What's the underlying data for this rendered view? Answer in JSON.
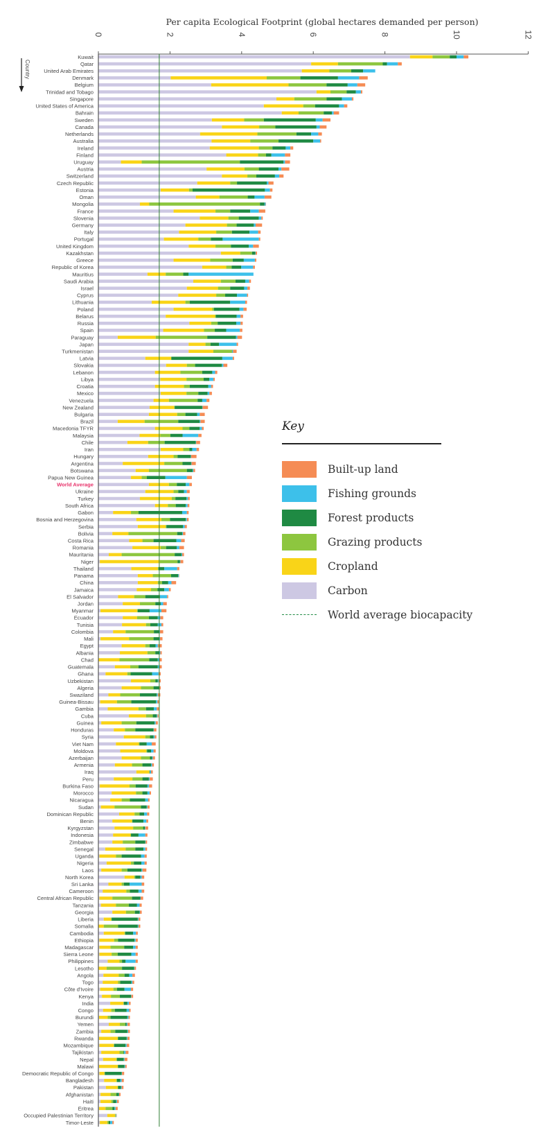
{
  "chart_data": {
    "type": "bar",
    "orientation": "horizontal",
    "stacked": true,
    "title": "Per capita Ecological Footprint (global hectares demanded per person)",
    "xlabel": "",
    "ylabel": "Country",
    "xlim": [
      0,
      12
    ],
    "xticks": [
      0,
      2,
      4,
      6,
      8,
      10,
      12
    ],
    "grid": false,
    "legend_title": "Key",
    "legend_placement": "right-middle",
    "highlight_category": "World Average",
    "highlight_color": "#e8336b",
    "reference_line": {
      "name": "World average biocapacity",
      "value": 1.7,
      "color": "#2e7d32",
      "style": "dashed"
    },
    "categories": [
      "Kuwait",
      "Qatar",
      "United Arab Emirates",
      "Denmark",
      "Belgium",
      "Trinidad and Tobago",
      "Singapore",
      "United States of America",
      "Bahrain",
      "Sweden",
      "Canada",
      "Netherlands",
      "Australia",
      "Ireland",
      "Finland",
      "Uruguay",
      "Austria",
      "Switzerland",
      "Czech Republic",
      "Estonia",
      "Oman",
      "Mongolia",
      "France",
      "Slovenia",
      "Germany",
      "Italy",
      "Portugal",
      "United Kingdom",
      "Kazakhstan",
      "Greece",
      "Republic of Korea",
      "Mauritius",
      "Saudi Arabia",
      "Israel",
      "Cyprus",
      "Lithuania",
      "Poland",
      "Belarus",
      "Russia",
      "Spain",
      "Paraguay",
      "Japan",
      "Turkmenistan",
      "Latvia",
      "Slovakia",
      "Lebanon",
      "Libya",
      "Croatia",
      "Mexico",
      "Venezuela",
      "New Zealand",
      "Bulgaria",
      "Brazil",
      "Macedonia TFYR",
      "Malaysia",
      "Chile",
      "Iran",
      "Hungary",
      "Argentina",
      "Botswana",
      "Papua New Guinea",
      "World Average",
      "Ukraine",
      "Turkey",
      "South Africa",
      "Gabon",
      "Bosnia and Herzegovina",
      "Serbia",
      "Bolivia",
      "Costa Rica",
      "Romania",
      "Mauritania",
      "Niger",
      "Thailand",
      "Panama",
      "China",
      "Jamaica",
      "El Salvador",
      "Jordan",
      "Myanmar",
      "Ecuador",
      "Tunisia",
      "Colombia",
      "Mali",
      "Egypt",
      "Albania",
      "Chad",
      "Guatemala",
      "Ghana",
      "Uzbekistan",
      "Algeria",
      "Swaziland",
      "Guinea-Bissau",
      "Gambia",
      "Cuba",
      "Guinea",
      "Honduras",
      "Syria",
      "Viet Nam",
      "Moldova",
      "Azerbaijan",
      "Armenia",
      "Iraq",
      "Peru",
      "Burkina Faso",
      "Morocco",
      "Nicaragua",
      "Sudan",
      "Dominican Republic",
      "Benin",
      "Kyrgyzstan",
      "Indonesia",
      "Zimbabwe",
      "Senegal",
      "Uganda",
      "Nigeria",
      "Laos",
      "North Korea",
      "Sri Lanka",
      "Cameroon",
      "Central African Republic",
      "Tanzania",
      "Georgia",
      "Liberia",
      "Somalia",
      "Cambodia",
      "Ethiopia",
      "Madagascar",
      "Sierra Leone",
      "Philippines",
      "Lesotho",
      "Angola",
      "Togo",
      "Côte d'Ivoire",
      "Kenya",
      "India",
      "Congo",
      "Burundi",
      "Yemen",
      "Zambia",
      "Rwanda",
      "Mozambique",
      "Tajikistan",
      "Nepal",
      "Malawi",
      "Democratic Republic of Congo",
      "Bangladesh",
      "Pakistan",
      "Afghanistan",
      "Haiti",
      "Eritrea",
      "Occupied Palestinian Territory",
      "Timor-Leste"
    ],
    "series": [
      {
        "name": "Carbon",
        "color": "#cdc8e3",
        "values": [
          8.7,
          5.94,
          5.68,
          2.02,
          3.15,
          6.09,
          4.97,
          4.62,
          5.12,
          3.17,
          3.45,
          2.84,
          3.16,
          3.11,
          3.57,
          0.63,
          3.02,
          3.45,
          2.76,
          1.74,
          2.72,
          1.16,
          2.1,
          2.83,
          2.43,
          2.25,
          1.83,
          2.52,
          3.42,
          2.1,
          2.9,
          1.37,
          2.65,
          2.47,
          2.23,
          1.49,
          2.1,
          1.88,
          2.54,
          1.81,
          0.54,
          2.52,
          2.52,
          1.31,
          1.89,
          1.58,
          1.73,
          1.58,
          1.74,
          1.54,
          1.43,
          1.41,
          0.54,
          1.58,
          1.15,
          0.81,
          1.74,
          1.39,
          0.68,
          1.04,
          0.91,
          1.41,
          1.31,
          1.16,
          1.58,
          0.41,
          1.06,
          1.1,
          0.39,
          0.86,
          0.95,
          0.29,
          0.04,
          0.92,
          1.1,
          1.1,
          1.07,
          0.55,
          0.68,
          0.06,
          0.68,
          0.66,
          0.41,
          0.06,
          0.65,
          0.6,
          0.01,
          0.46,
          0.2,
          0.91,
          0.65,
          0.28,
          0.05,
          0.26,
          0.85,
          0.08,
          0.43,
          0.71,
          0.49,
          0.61,
          0.65,
          0.46,
          1.06,
          0.43,
          0.04,
          0.37,
          0.33,
          0.07,
          0.58,
          0.39,
          0.45,
          0.41,
          0.39,
          0.19,
          0.03,
          0.23,
          0.08,
          0.73,
          0.28,
          0.12,
          0.03,
          0.07,
          0.39,
          0.15,
          0.01,
          0.15,
          0.03,
          0.03,
          0.03,
          0.26,
          0.01,
          0.14,
          0.12,
          0.05,
          0.1,
          0.33,
          0.13,
          0.02,
          0.29,
          0.08,
          0.02,
          0.03,
          0.08,
          0.13,
          0.02,
          0.03,
          0.16,
          0.21,
          0.06,
          0.06,
          0.02,
          0.25,
          0.04
        ]
      },
      {
        "name": "Cropland",
        "color": "#f9d418",
        "values": [
          0.63,
          0.75,
          0.77,
          2.68,
          2.16,
          0.39,
          0.5,
          1.1,
          0.47,
          0.9,
          1.04,
          1.6,
          1.08,
          1.37,
          0.89,
          0.58,
          1.06,
          0.71,
          0.92,
          0.79,
          0.66,
          0.26,
          1.17,
          0.8,
          1.16,
          1.04,
          0.96,
          0.75,
          0.54,
          1.02,
          0.67,
          0.51,
          0.77,
          0.87,
          1.06,
          0.94,
          1.08,
          1.38,
          0.61,
          1.14,
          1.06,
          0.47,
          0.69,
          0.72,
          0.58,
          0.71,
          0.73,
          0.81,
          0.72,
          0.43,
          0.69,
          0.79,
          0.75,
          0.77,
          0.58,
          0.58,
          0.63,
          0.71,
          1.16,
          0.37,
          0.3,
          0.56,
          0.79,
          0.89,
          0.36,
          0.5,
          0.7,
          0.78,
          0.45,
          0.37,
          0.79,
          0.36,
          1.68,
          0.74,
          0.42,
          0.56,
          0.4,
          0.45,
          0.48,
          1.02,
          0.4,
          0.67,
          0.35,
          0.8,
          0.66,
          0.77,
          0.58,
          0.43,
          0.61,
          0.54,
          0.54,
          0.33,
          0.47,
          0.86,
          0.48,
          0.57,
          0.31,
          0.6,
          0.64,
          0.73,
          0.54,
          0.48,
          0.36,
          0.52,
          0.83,
          0.68,
          0.32,
          0.38,
          0.43,
          0.55,
          0.52,
          0.49,
          0.29,
          0.57,
          0.46,
          0.68,
          0.57,
          0.27,
          0.37,
          0.66,
          0.36,
          0.42,
          0.38,
          0.21,
          0.14,
          0.58,
          0.41,
          0.31,
          0.34,
          0.33,
          0.22,
          0.43,
          0.43,
          0.37,
          0.25,
          0.37,
          0.23,
          0.24,
          0.31,
          0.26,
          0.52,
          0.4,
          0.51,
          0.37,
          0.52,
          0.14,
          0.34,
          0.33,
          0.28,
          0.3,
          0.18,
          0.22,
          0.21
        ]
      },
      {
        "name": "Grazing products",
        "color": "#8dc63f",
        "values": [
          0.48,
          1.25,
          0.61,
          0.94,
          1.06,
          0.45,
          0.9,
          0.33,
          0.7,
          0.55,
          0.45,
          1.09,
          0.79,
          0.38,
          0.22,
          2.74,
          0.4,
          0.25,
          0.19,
          0.1,
          0.79,
          3.09,
          0.41,
          0.29,
          0.27,
          0.44,
          0.35,
          0.43,
          0.33,
          0.63,
          0.15,
          0.49,
          0.41,
          0.34,
          0.25,
          0.12,
          0.05,
          0.02,
          0.18,
          0.3,
          1.44,
          0.14,
          0.52,
          0.01,
          0.23,
          0.61,
          0.48,
          0.16,
          0.33,
          0.8,
          0.01,
          0.23,
          0.94,
          0.19,
          0.28,
          0.46,
          0.17,
          0.11,
          0.51,
          1.06,
          0.14,
          0.22,
          0.13,
          0.1,
          0.22,
          0.21,
          0.24,
          0.02,
          1.36,
          0.31,
          0.15,
          1.48,
          0.49,
          0.02,
          0.51,
          0.12,
          0.18,
          0.31,
          0.43,
          0.02,
          0.33,
          0.12,
          0.79,
          0.68,
          0.12,
          0.22,
          0.83,
          0.23,
          0.09,
          0.14,
          0.35,
          0.55,
          0.4,
          0.21,
          0.19,
          0.41,
          0.29,
          0.13,
          0.02,
          0.02,
          0.25,
          0.29,
          0.01,
          0.28,
          0.17,
          0.18,
          0.23,
          0.74,
          0.14,
          0.01,
          0.28,
          0.01,
          0.35,
          0.27,
          0.16,
          0.08,
          0.16,
          0.03,
          0.06,
          0.1,
          0.55,
          0.36,
          0.25,
          0.01,
          0.4,
          0.02,
          0.11,
          0.38,
          0.17,
          0.07,
          0.43,
          0.16,
          0.06,
          0.1,
          0.25,
          0.01,
          0.1,
          0.08,
          0.15,
          0.13,
          0.01,
          0.01,
          0.11,
          0.02,
          0.01,
          0.01,
          0.02,
          0.01,
          0.16,
          0.05,
          0.19,
          0.01,
          0.04
        ]
      },
      {
        "name": "Forest products",
        "color": "#1f8a43",
        "values": [
          0.19,
          0.12,
          0.33,
          1.05,
          0.59,
          0.26,
          0.43,
          0.67,
          0.23,
          1.45,
          1.15,
          0.41,
          0.97,
          0.37,
          0.15,
          1.22,
          0.55,
          0.52,
          0.83,
          2.02,
          0.19,
          0.13,
          0.56,
          0.56,
          0.48,
          0.49,
          0.33,
          0.5,
          0.09,
          0.31,
          0.27,
          0.15,
          0.27,
          0.39,
          0.33,
          1.13,
          0.71,
          0.58,
          0.52,
          0.32,
          0.8,
          0.24,
          0.01,
          1.42,
          0.75,
          0.28,
          0.16,
          0.52,
          0.26,
          0.13,
          0.77,
          0.33,
          0.6,
          0.29,
          0.34,
          0.87,
          0.08,
          0.37,
          0.24,
          0.16,
          0.52,
          0.25,
          0.16,
          0.31,
          0.28,
          1.22,
          0.44,
          0.46,
          0.14,
          0.64,
          0.3,
          0.19,
          0.07,
          0.16,
          0.2,
          0.17,
          0.19,
          0.41,
          0.15,
          0.33,
          0.25,
          0.21,
          0.15,
          0.16,
          0.17,
          0.11,
          0.24,
          0.54,
          0.6,
          0.07,
          0.16,
          0.47,
          0.69,
          0.22,
          0.11,
          0.51,
          0.51,
          0.1,
          0.2,
          0.11,
          0.06,
          0.24,
          0.01,
          0.18,
          0.33,
          0.14,
          0.43,
          0.16,
          0.13,
          0.31,
          0.05,
          0.21,
          0.28,
          0.23,
          0.54,
          0.21,
          0.39,
          0.14,
          0.16,
          0.24,
          0.23,
          0.23,
          0.13,
          0.73,
          0.55,
          0.22,
          0.46,
          0.25,
          0.38,
          0.1,
          0.34,
          0.13,
          0.31,
          0.21,
          0.31,
          0.1,
          0.33,
          0.47,
          0.04,
          0.34,
          0.24,
          0.32,
          0.02,
          0.19,
          0.18,
          0.47,
          0.09,
          0.08,
          0.07,
          0.09,
          0.06,
          0.01,
          0.04
        ]
      },
      {
        "name": "Fishing grounds",
        "color": "#3dc0ea",
        "values": [
          0.2,
          0.3,
          0.34,
          0.59,
          0.27,
          0.14,
          0.28,
          0.14,
          0.05,
          0.19,
          0.09,
          0.2,
          0.19,
          0.13,
          0.38,
          0.04,
          0.08,
          0.12,
          0.05,
          0.14,
          0.28,
          0.03,
          0.24,
          0.07,
          0.05,
          0.24,
          1.01,
          0.12,
          0.01,
          0.31,
          0.33,
          1.81,
          0.11,
          0.09,
          0.28,
          0.42,
          0.11,
          0.11,
          0.12,
          0.38,
          0.04,
          0.49,
          0.02,
          0.29,
          0.04,
          0.08,
          0.11,
          0.08,
          0.05,
          0.12,
          0.01,
          0.07,
          0.02,
          0.06,
          0.44,
          0.01,
          0.12,
          0.01,
          0.01,
          0.02,
          0.6,
          0.1,
          0.08,
          0.04,
          0.05,
          0.13,
          0.03,
          0.05,
          0.02,
          0.13,
          0.07,
          0.02,
          0.01,
          0.36,
          0.02,
          0.09,
          0.13,
          0.2,
          0.07,
          0.33,
          0.07,
          0.1,
          0.02,
          0.02,
          0.06,
          0.03,
          0.04,
          0.05,
          0.18,
          0.02,
          0.01,
          0.03,
          0.04,
          0.08,
          0.02,
          0.03,
          0.01,
          0.03,
          0.14,
          0.07,
          0.02,
          0.03,
          0.03,
          0.02,
          0.04,
          0.06,
          0.08,
          0.02,
          0.08,
          0.08,
          0.01,
          0.19,
          0.01,
          0.05,
          0.1,
          0.09,
          0.03,
          0.04,
          0.34,
          0.09,
          0.01,
          0.07,
          0.01,
          0.02,
          0.02,
          0.08,
          0.03,
          0.07,
          0.12,
          0.28,
          0.01,
          0.09,
          0.03,
          0.18,
          0.01,
          0.04,
          0.07,
          0.03,
          0.02,
          0.02,
          0.02,
          0.03,
          0.04,
          0.02,
          0.02,
          0.01,
          0.04,
          0.02,
          0.01,
          0.02,
          0.03,
          0.01,
          0.06
        ]
      },
      {
        "name": "Built-up land",
        "color": "#f58c55",
        "values": [
          0.13,
          0.11,
          0,
          0.24,
          0.22,
          0.04,
          0.04,
          0.09,
          0.15,
          0.22,
          0.19,
          0.1,
          0.03,
          0.08,
          0.15,
          0.14,
          0.22,
          0.12,
          0.14,
          0.07,
          0.19,
          0.01,
          0.18,
          0.04,
          0.18,
          0.07,
          0.04,
          0.16,
          0.04,
          0.04,
          0.05,
          0,
          0.05,
          0.07,
          0.03,
          0.05,
          0.09,
          0.07,
          0.06,
          0.07,
          0.13,
          0.04,
          0.1,
          0.04,
          0.11,
          0.06,
          0.04,
          0.05,
          0.07,
          0.08,
          0.15,
          0.14,
          0.12,
          0.05,
          0.09,
          0.11,
          0.07,
          0.15,
          0.12,
          0.05,
          0.14,
          0.07,
          0.08,
          0.05,
          0.05,
          0.05,
          0.05,
          0.06,
          0.07,
          0.1,
          0.13,
          0.05,
          0.08,
          0.06,
          0.01,
          0.13,
          0.05,
          0.03,
          0.1,
          0.14,
          0.08,
          0.05,
          0.09,
          0.07,
          0.11,
          0.04,
          0.07,
          0.06,
          0.06,
          0.06,
          0.03,
          0.07,
          0.05,
          0.07,
          0.03,
          0.06,
          0.07,
          0.05,
          0.11,
          0.06,
          0.06,
          0.05,
          0.05,
          0.09,
          0.09,
          0.04,
          0.04,
          0.06,
          0.06,
          0.05,
          0.08,
          0.06,
          0.04,
          0.05,
          0.06,
          0.06,
          0.11,
          0.07,
          0.07,
          0.07,
          0.07,
          0.06,
          0.05,
          0.05,
          0.05,
          0.05,
          0.06,
          0.06,
          0.06,
          0.06,
          0.04,
          0.07,
          0.05,
          0.06,
          0.05,
          0.05,
          0.04,
          0.04,
          0.07,
          0.05,
          0.06,
          0.07,
          0.08,
          0.08,
          0.04,
          0.06,
          0.06,
          0.05,
          0.04,
          0.05,
          0.06,
          0.01,
          0.04
        ]
      }
    ]
  },
  "legend": {
    "title": "Key",
    "items": [
      {
        "label": "Built-up land",
        "color": "#f58c55"
      },
      {
        "label": "Fishing grounds",
        "color": "#3dc0ea"
      },
      {
        "label": "Forest products",
        "color": "#1f8a43"
      },
      {
        "label": "Grazing products",
        "color": "#8dc63f"
      },
      {
        "label": "Cropland",
        "color": "#f9d418"
      },
      {
        "label": "Carbon",
        "color": "#cdc8e3"
      }
    ],
    "line_label": "World average biocapacity"
  }
}
